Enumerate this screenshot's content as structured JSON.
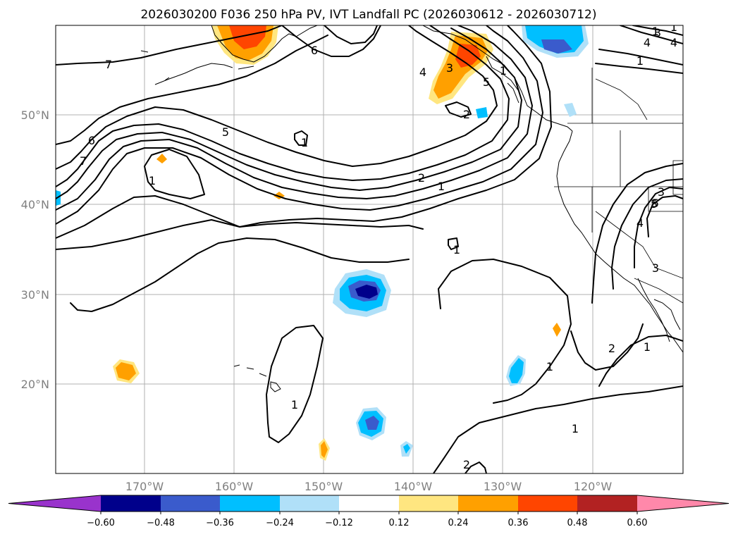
{
  "title": "2026030200 F036 250 hPa PV, IVT Landfall PC (2026030612 - 2026030712)",
  "axes": {
    "lon_ticks": [
      "170°W",
      "160°W",
      "150°W",
      "140°W",
      "130°W",
      "120°W"
    ],
    "lat_ticks": [
      "50°N",
      "40°N",
      "30°N",
      "20°N"
    ]
  },
  "colorbar": {
    "labels": [
      "−0.60",
      "−0.48",
      "−0.36",
      "−0.24",
      "−0.12",
      "0.12",
      "0.24",
      "0.36",
      "0.48",
      "0.60"
    ],
    "colors": [
      "#9933cc",
      "#00008b",
      "#3a5bcc",
      "#00bfff",
      "#b0e0f8",
      "#ffffff",
      "#ffe680",
      "#ffa000",
      "#ff4500",
      "#b22222",
      "#ff88aa"
    ]
  },
  "contour_labels": [
    "7",
    "6",
    "5",
    "4",
    "3",
    "2",
    "1",
    "7",
    "6",
    "5",
    "1",
    "1",
    "1",
    "2",
    "1",
    "4",
    "3",
    "1",
    "5",
    "4",
    "3",
    "2",
    "1",
    "1",
    "1",
    "1",
    "2",
    "1",
    "5",
    "4",
    "3",
    "1"
  ],
  "colors": {
    "contour": "#000000",
    "grid": "#b0b0b0",
    "tick_text": "#808080"
  }
}
